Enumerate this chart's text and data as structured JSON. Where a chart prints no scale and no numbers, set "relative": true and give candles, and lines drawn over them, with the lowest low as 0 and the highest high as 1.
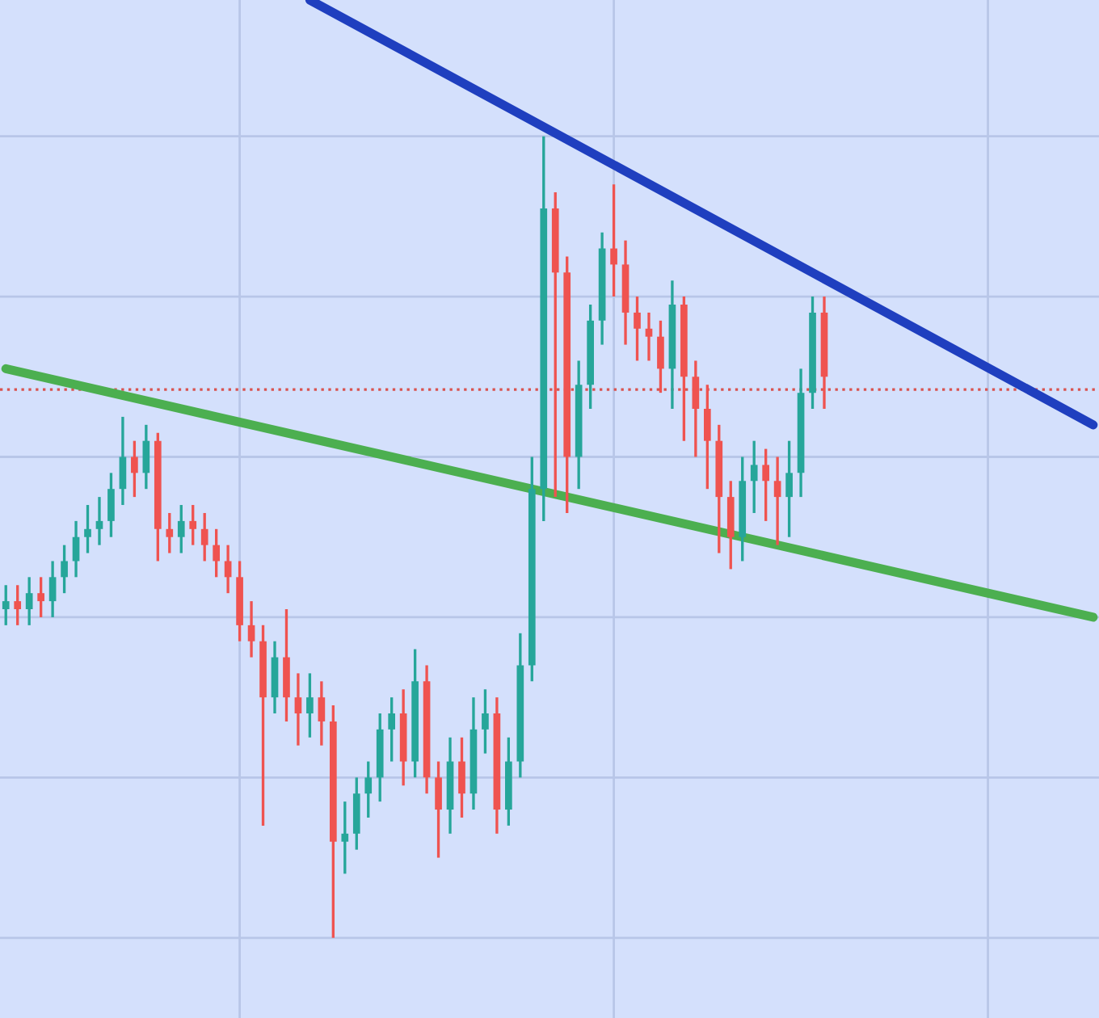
{
  "chart_data": {
    "type": "candlestick",
    "relative": true,
    "grid": true,
    "categories": [
      null,
      null,
      null,
      null,
      null,
      null,
      null,
      null,
      null,
      null,
      null,
      null,
      null,
      null,
      null,
      null,
      null,
      null,
      null,
      null,
      null,
      null,
      null,
      null,
      null,
      null,
      null,
      null,
      null,
      null,
      null,
      null,
      null,
      null,
      null,
      null,
      null,
      null,
      null,
      null,
      null,
      null,
      null,
      null,
      null,
      null,
      null,
      null,
      null,
      null,
      null,
      null,
      null,
      null,
      null,
      null,
      null,
      null,
      null,
      null,
      null,
      null,
      null,
      null,
      null,
      null,
      null,
      null,
      null,
      null,
      null,
      null,
      null,
      null,
      null,
      null,
      null,
      null,
      null,
      null,
      null,
      null,
      null,
      null,
      null,
      null,
      null,
      null,
      null,
      null,
      null,
      null,
      null,
      null
    ],
    "colors": [
      "#26a69a",
      "#ef5350",
      "#26a69a",
      "#ef5350",
      "#26a69a",
      "#26a69a",
      "#26a69a",
      "#26a69a",
      "#26a69a",
      "#26a69a",
      "#26a69a",
      "#ef5350",
      "#26a69a",
      "#ef5350",
      "#ef5350",
      "#26a69a",
      "#ef5350",
      "#ef5350",
      "#ef5350",
      "#ef5350",
      "#ef5350",
      "#ef5350",
      "#ef5350",
      "#26a69a",
      "#ef5350",
      "#ef5350",
      "#26a69a",
      "#ef5350",
      "#ef5350",
      "#26a69a",
      "#26a69a",
      "#26a69a",
      "#26a69a",
      "#26a69a",
      "#ef5350",
      "#26a69a",
      "#ef5350",
      "#ef5350",
      "#26a69a",
      "#ef5350",
      "#26a69a",
      "#26a69a",
      "#ef5350",
      "#26a69a",
      "#26a69a",
      "#26a69a",
      "#26a69a",
      "#ef5350",
      "#ef5350",
      "#26a69a",
      "#26a69a",
      "#26a69a",
      "#ef5350",
      "#ef5350",
      "#ef5350",
      "#ef5350",
      "#ef5350",
      "#26a69a",
      "#ef5350",
      "#ef5350",
      "#ef5350",
      "#ef5350",
      "#ef5350",
      "#26a69a",
      "#26a69a",
      "#ef5350",
      "#ef5350",
      "#26a69a",
      "#26a69a",
      "#26a69a",
      "#ef5350",
      null,
      null,
      null,
      null,
      null,
      null,
      null,
      null,
      null,
      null,
      null,
      null,
      null,
      null,
      null,
      null,
      null,
      null,
      null,
      null,
      null,
      null,
      null
    ],
    "ohlc": [
      [
        0.41,
        0.44,
        0.39,
        0.42
      ],
      [
        0.42,
        0.44,
        0.39,
        0.41
      ],
      [
        0.41,
        0.45,
        0.39,
        0.43
      ],
      [
        0.43,
        0.45,
        0.4,
        0.42
      ],
      [
        0.42,
        0.47,
        0.4,
        0.45
      ],
      [
        0.45,
        0.49,
        0.43,
        0.47
      ],
      [
        0.47,
        0.52,
        0.45,
        0.5
      ],
      [
        0.5,
        0.54,
        0.48,
        0.51
      ],
      [
        0.51,
        0.55,
        0.49,
        0.52
      ],
      [
        0.52,
        0.58,
        0.5,
        0.56
      ],
      [
        0.56,
        0.65,
        0.54,
        0.6
      ],
      [
        0.6,
        0.62,
        0.55,
        0.58
      ],
      [
        0.58,
        0.64,
        0.56,
        0.62
      ],
      [
        0.62,
        0.63,
        0.47,
        0.51
      ],
      [
        0.51,
        0.53,
        0.48,
        0.5
      ],
      [
        0.5,
        0.54,
        0.48,
        0.52
      ],
      [
        0.52,
        0.54,
        0.49,
        0.51
      ],
      [
        0.51,
        0.53,
        0.47,
        0.49
      ],
      [
        0.49,
        0.51,
        0.45,
        0.47
      ],
      [
        0.47,
        0.49,
        0.43,
        0.45
      ],
      [
        0.45,
        0.47,
        0.37,
        0.39
      ],
      [
        0.39,
        0.42,
        0.35,
        0.37
      ],
      [
        0.37,
        0.39,
        0.14,
        0.3
      ],
      [
        0.3,
        0.37,
        0.28,
        0.35
      ],
      [
        0.35,
        0.41,
        0.27,
        0.3
      ],
      [
        0.3,
        0.33,
        0.24,
        0.28
      ],
      [
        0.28,
        0.33,
        0.25,
        0.3
      ],
      [
        0.3,
        0.32,
        0.24,
        0.27
      ],
      [
        0.27,
        0.29,
        0.0,
        0.12
      ],
      [
        0.12,
        0.17,
        0.08,
        0.13
      ],
      [
        0.13,
        0.2,
        0.11,
        0.18
      ],
      [
        0.18,
        0.22,
        0.15,
        0.2
      ],
      [
        0.2,
        0.28,
        0.17,
        0.26
      ],
      [
        0.26,
        0.3,
        0.22,
        0.28
      ],
      [
        0.28,
        0.31,
        0.19,
        0.22
      ],
      [
        0.22,
        0.36,
        0.2,
        0.32
      ],
      [
        0.32,
        0.34,
        0.18,
        0.2
      ],
      [
        0.2,
        0.22,
        0.1,
        0.16
      ],
      [
        0.16,
        0.25,
        0.13,
        0.22
      ],
      [
        0.22,
        0.25,
        0.15,
        0.18
      ],
      [
        0.18,
        0.3,
        0.16,
        0.26
      ],
      [
        0.26,
        0.31,
        0.23,
        0.28
      ],
      [
        0.28,
        0.3,
        0.13,
        0.16
      ],
      [
        0.16,
        0.25,
        0.14,
        0.22
      ],
      [
        0.22,
        0.38,
        0.2,
        0.34
      ],
      [
        0.34,
        0.6,
        0.32,
        0.56
      ],
      [
        0.56,
        1.0,
        0.52,
        0.91
      ],
      [
        0.91,
        0.93,
        0.55,
        0.83
      ],
      [
        0.83,
        0.85,
        0.53,
        0.6
      ],
      [
        0.6,
        0.72,
        0.56,
        0.69
      ],
      [
        0.69,
        0.79,
        0.66,
        0.77
      ],
      [
        0.77,
        0.88,
        0.74,
        0.86
      ],
      [
        0.86,
        0.94,
        0.8,
        0.84
      ],
      [
        0.84,
        0.87,
        0.74,
        0.78
      ],
      [
        0.78,
        0.8,
        0.72,
        0.76
      ],
      [
        0.76,
        0.78,
        0.72,
        0.75
      ],
      [
        0.75,
        0.77,
        0.68,
        0.71
      ],
      [
        0.71,
        0.82,
        0.66,
        0.79
      ],
      [
        0.79,
        0.8,
        0.62,
        0.7
      ],
      [
        0.7,
        0.72,
        0.6,
        0.66
      ],
      [
        0.66,
        0.69,
        0.56,
        0.62
      ],
      [
        0.62,
        0.64,
        0.48,
        0.55
      ],
      [
        0.55,
        0.57,
        0.46,
        0.5
      ],
      [
        0.5,
        0.6,
        0.47,
        0.57
      ],
      [
        0.57,
        0.62,
        0.53,
        0.59
      ],
      [
        0.59,
        0.61,
        0.52,
        0.57
      ],
      [
        0.57,
        0.6,
        0.49,
        0.55
      ],
      [
        0.55,
        0.62,
        0.5,
        0.58
      ],
      [
        0.58,
        0.71,
        0.55,
        0.68
      ],
      [
        0.68,
        0.8,
        0.66,
        0.78
      ],
      [
        0.78,
        0.8,
        0.66,
        0.7
      ],
      null,
      null,
      null,
      null,
      null,
      null,
      null,
      null,
      null,
      null,
      null,
      null,
      null,
      null,
      null,
      null,
      null,
      null,
      null,
      null,
      null,
      null,
      null
    ],
    "series": [
      {
        "type": "line",
        "color": "#1f3fbf",
        "values": [
          null,
          null,
          null,
          null,
          null,
          null,
          null,
          null,
          null,
          null,
          null,
          null,
          null,
          null,
          null,
          null,
          null,
          null,
          null,
          null,
          null,
          null,
          null,
          null,
          null,
          null,
          1.17,
          null,
          null,
          null,
          null,
          null,
          null,
          null,
          null,
          null,
          null,
          null,
          null,
          null,
          null,
          null,
          null,
          null,
          null,
          null,
          null,
          null,
          null,
          null,
          null,
          null,
          null,
          null,
          null,
          null,
          null,
          null,
          null,
          null,
          null,
          null,
          null,
          null,
          null,
          null,
          null,
          null,
          null,
          null,
          null,
          null,
          null,
          null,
          null,
          null,
          null,
          null,
          null,
          null,
          null,
          null,
          null,
          null,
          null,
          null,
          null,
          null,
          null,
          null,
          null,
          null,
          null,
          0.64
        ]
      },
      {
        "type": "line",
        "color": "#4caf50",
        "values": [
          0.71,
          null,
          null,
          null,
          null,
          null,
          null,
          null,
          null,
          null,
          null,
          null,
          null,
          null,
          null,
          null,
          null,
          null,
          null,
          null,
          null,
          null,
          null,
          null,
          null,
          null,
          null,
          null,
          null,
          null,
          null,
          null,
          null,
          null,
          null,
          null,
          null,
          null,
          null,
          null,
          null,
          null,
          null,
          null,
          null,
          null,
          null,
          null,
          null,
          null,
          null,
          null,
          null,
          null,
          null,
          null,
          null,
          null,
          null,
          null,
          null,
          null,
          null,
          null,
          null,
          null,
          null,
          null,
          null,
          null,
          null,
          null,
          null,
          null,
          null,
          null,
          null,
          null,
          null,
          null,
          null,
          null,
          null,
          null,
          null,
          null,
          null,
          null,
          null,
          null,
          null,
          null,
          null,
          0.4
        ]
      }
    ],
    "ref_lines": [
      {
        "axis": "y",
        "value": 0.684,
        "color": "#d9534f",
        "line_style": "dotted"
      }
    ]
  }
}
